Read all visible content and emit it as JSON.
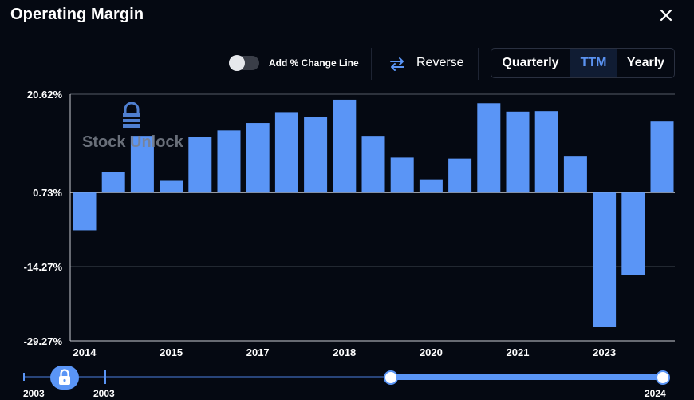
{
  "header": {
    "title": "Operating Margin"
  },
  "toolbar": {
    "change_line_label": "Add % Change Line",
    "change_line_on": false,
    "reverse_label": "Reverse",
    "periods": [
      "Quarterly",
      "TTM",
      "Yearly"
    ],
    "active_period": "TTM"
  },
  "watermark": {
    "text": "Stock Unlock"
  },
  "chart_data": {
    "type": "bar",
    "title": "Operating Margin",
    "y_tick_labels": [
      "20.62%",
      "0.73%",
      "-14.27%",
      "-29.27%"
    ],
    "y_ticks": [
      20.62,
      0.73,
      -14.27,
      -29.27
    ],
    "ylim": [
      -29.27,
      20.62
    ],
    "baseline": 0.73,
    "x_tick_labels": [
      "2014",
      "2015",
      "2017",
      "2018",
      "2020",
      "2021",
      "2023"
    ],
    "x_tick_index": [
      0,
      3,
      6,
      9,
      12,
      15,
      18
    ],
    "values": [
      -6.9,
      4.8,
      12.2,
      3.1,
      12.0,
      13.3,
      14.8,
      17.0,
      16.0,
      19.5,
      12.2,
      7.8,
      3.4,
      7.6,
      18.8,
      17.1,
      17.2,
      8.0,
      -26.4,
      -15.9,
      15.1
    ],
    "bar_color": "#5a95f6",
    "grid": true
  },
  "range_slider": {
    "min_label": "2003",
    "start_label": "2003",
    "end_label": "2024",
    "accent_color": "#5a95f6"
  }
}
